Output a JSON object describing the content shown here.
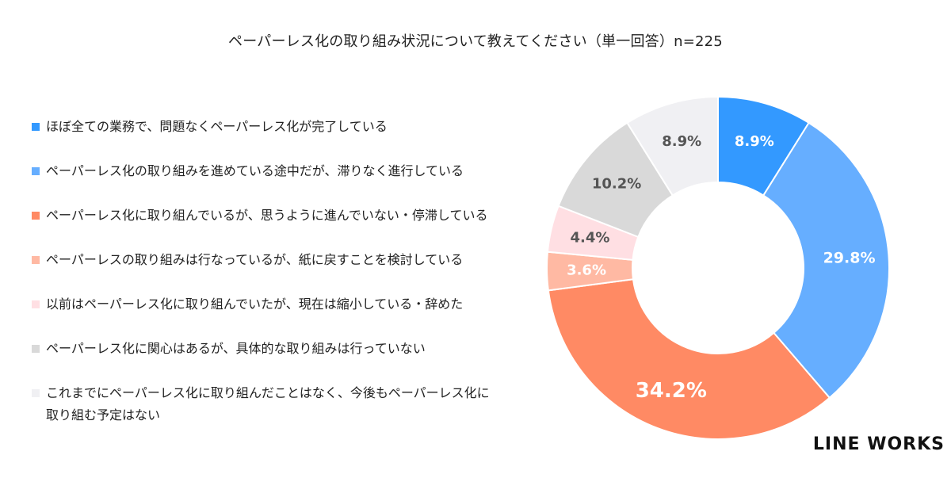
{
  "chart_data": {
    "type": "pie",
    "title": "ペーパーレス化の取り組み状況について教えてください（単一回答）n=225",
    "categories": [
      "ほぼ全ての業務で、問題なくペーパーレス化が完了している",
      "ペーパーレス化の取り組みを進めている途中だが、滞りなく進行している",
      "ペーパーレス化に取り組んでいるが、思うように進んでいない・停滞している",
      "ペーパーレスの取り組みは行なっているが、紙に戻すことを検討している",
      "以前はペーパーレス化に取り組んでいたが、現在は縮小している・辞めた",
      "ペーパーレス化に関心はあるが、具体的な取り組みは行っていない",
      "これまでにペーパーレス化に取り組んだことはなく、今後もペーパーレス化に取り組む予定はない"
    ],
    "values": [
      8.9,
      29.8,
      34.2,
      3.6,
      4.4,
      10.2,
      8.9
    ],
    "labels": [
      "8.9%",
      "29.8%",
      "34.2%",
      "3.6%",
      "4.4%",
      "10.2%",
      "8.9%"
    ],
    "colors": [
      "#3399ff",
      "#66aeff",
      "#ff8a64",
      "#ffb9a3",
      "#ffdfe3",
      "#d9d9d9",
      "#f0f0f3"
    ],
    "label_colors": [
      "#ffffff",
      "#ffffff",
      "#ffffff",
      "#ffffff",
      "#555555",
      "#555555",
      "#555555"
    ],
    "donut": true,
    "legend_position": "left"
  },
  "legend_lines": [
    [
      "ほぼ全ての業務で、問題なくペーパーレス化が完了している"
    ],
    [
      "ペーパーレス化の取り組みを進めている途中だが、滞りなく進行している"
    ],
    [
      "ペーパーレス化に取り組んでいるが、思うように進んでいない・停滞している"
    ],
    [
      "ペーパーレスの取り組みは行なっているが、紙に戻すことを検討している"
    ],
    [
      "以前はペーパーレス化に取り組んでいたが、現在は縮小している・辞めた"
    ],
    [
      "ペーパーレス化に関心はあるが、具体的な取り組みは行っていない"
    ],
    [
      "これまでにペーパーレス化に取り組んだことはなく、今後もペーパーレス化に",
      "取り組む予定はない"
    ]
  ],
  "brand": {
    "logo_text": "LINE WORKS"
  }
}
